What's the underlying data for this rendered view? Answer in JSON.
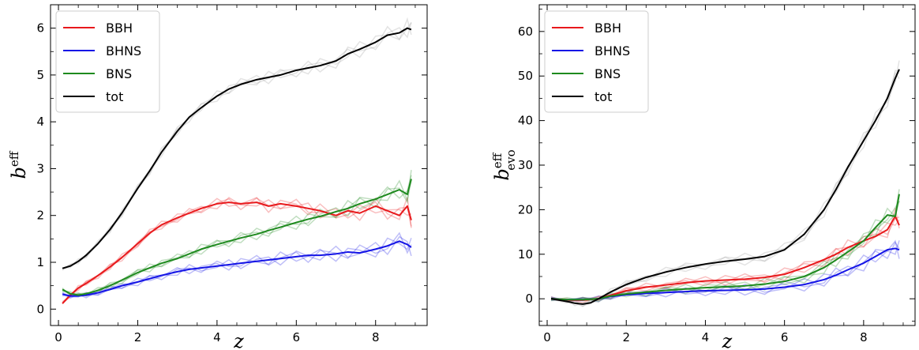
{
  "chart_data": [
    {
      "type": "line",
      "title": "",
      "xlabel": "z",
      "ylabel": {
        "base": "b",
        "sup": "eff",
        "sub": ""
      },
      "xlim": [
        -0.2,
        9.3
      ],
      "ylim": [
        -0.35,
        6.5
      ],
      "xticks": [
        0,
        2,
        4,
        6,
        8
      ],
      "yticks": [
        0,
        1,
        2,
        3,
        4,
        5,
        6
      ],
      "legend_position": "top-left",
      "colors": {
        "BBH": "#e8191c",
        "BHNS": "#1414e6",
        "BNS": "#1e8a1e",
        "tot": "#000000"
      },
      "series": [
        {
          "name": "BBH",
          "x": [
            0.1,
            0.3,
            0.5,
            0.7,
            1.0,
            1.3,
            1.6,
            2.0,
            2.3,
            2.6,
            3.0,
            3.3,
            3.6,
            4.0,
            4.3,
            4.6,
            5.0,
            5.3,
            5.6,
            6.0,
            6.3,
            6.6,
            7.0,
            7.3,
            7.6,
            8.0,
            8.3,
            8.6,
            8.8,
            8.9
          ],
          "y": [
            0.12,
            0.3,
            0.45,
            0.55,
            0.72,
            0.9,
            1.1,
            1.4,
            1.62,
            1.8,
            1.95,
            2.05,
            2.15,
            2.25,
            2.28,
            2.25,
            2.28,
            2.2,
            2.25,
            2.2,
            2.15,
            2.1,
            2.0,
            2.1,
            2.05,
            2.2,
            2.1,
            2.0,
            2.2,
            1.9
          ]
        },
        {
          "name": "BHNS",
          "x": [
            0.1,
            0.3,
            0.5,
            0.7,
            1.0,
            1.3,
            1.6,
            2.0,
            2.3,
            2.6,
            3.0,
            3.3,
            3.6,
            4.0,
            4.3,
            4.6,
            5.0,
            5.3,
            5.6,
            6.0,
            6.3,
            6.6,
            7.0,
            7.3,
            7.6,
            8.0,
            8.3,
            8.6,
            8.8,
            8.9
          ],
          "y": [
            0.32,
            0.28,
            0.28,
            0.3,
            0.35,
            0.42,
            0.5,
            0.58,
            0.65,
            0.72,
            0.8,
            0.85,
            0.88,
            0.92,
            0.95,
            0.98,
            1.02,
            1.05,
            1.08,
            1.12,
            1.15,
            1.15,
            1.18,
            1.22,
            1.2,
            1.28,
            1.35,
            1.45,
            1.38,
            1.32
          ]
        },
        {
          "name": "BNS",
          "x": [
            0.1,
            0.3,
            0.5,
            0.7,
            1.0,
            1.3,
            1.6,
            2.0,
            2.3,
            2.6,
            3.0,
            3.3,
            3.6,
            4.0,
            4.3,
            4.6,
            5.0,
            5.3,
            5.6,
            6.0,
            6.3,
            6.6,
            7.0,
            7.3,
            7.6,
            8.0,
            8.3,
            8.6,
            8.8,
            8.9
          ],
          "y": [
            0.42,
            0.33,
            0.3,
            0.33,
            0.4,
            0.5,
            0.62,
            0.78,
            0.88,
            0.98,
            1.08,
            1.18,
            1.28,
            1.38,
            1.45,
            1.52,
            1.6,
            1.68,
            1.75,
            1.85,
            1.92,
            1.98,
            2.08,
            2.15,
            2.25,
            2.35,
            2.45,
            2.55,
            2.45,
            2.78
          ]
        },
        {
          "name": "tot",
          "x": [
            0.1,
            0.3,
            0.5,
            0.7,
            1.0,
            1.3,
            1.6,
            2.0,
            2.3,
            2.6,
            3.0,
            3.3,
            3.6,
            4.0,
            4.3,
            4.6,
            5.0,
            5.3,
            5.6,
            6.0,
            6.3,
            6.6,
            7.0,
            7.3,
            7.6,
            8.0,
            8.3,
            8.6,
            8.8,
            8.9
          ],
          "y": [
            0.87,
            0.92,
            1.02,
            1.15,
            1.4,
            1.7,
            2.05,
            2.58,
            2.95,
            3.35,
            3.8,
            4.1,
            4.3,
            4.55,
            4.7,
            4.8,
            4.9,
            4.95,
            5.0,
            5.1,
            5.15,
            5.2,
            5.3,
            5.45,
            5.55,
            5.7,
            5.85,
            5.9,
            6.0,
            5.97
          ]
        }
      ]
    },
    {
      "type": "line",
      "title": "",
      "xlabel": "z",
      "ylabel": {
        "base": "b",
        "sup": "eff",
        "sub": "evo"
      },
      "xlim": [
        -0.2,
        9.3
      ],
      "ylim": [
        -6,
        66
      ],
      "xticks": [
        0,
        2,
        4,
        6,
        8
      ],
      "yticks": [
        0,
        10,
        20,
        30,
        40,
        50,
        60
      ],
      "legend_position": "top-left",
      "colors": {
        "BBH": "#e8191c",
        "BHNS": "#1414e6",
        "BNS": "#1e8a1e",
        "tot": "#000000"
      },
      "series": [
        {
          "name": "BBH",
          "x": [
            0.1,
            0.5,
            0.9,
            1.3,
            1.6,
            2.0,
            2.5,
            3.0,
            3.5,
            4.0,
            4.5,
            5.0,
            5.5,
            6.0,
            6.5,
            7.0,
            7.3,
            7.6,
            8.0,
            8.3,
            8.6,
            8.8,
            8.9
          ],
          "y": [
            0,
            -0.3,
            -0.3,
            0,
            0.8,
            1.8,
            2.6,
            3.1,
            3.6,
            4.0,
            4.2,
            4.4,
            4.8,
            5.5,
            7.0,
            8.8,
            10.0,
            11.5,
            13.0,
            14.0,
            15.5,
            18.5,
            16.5
          ]
        },
        {
          "name": "BHNS",
          "x": [
            0.1,
            0.5,
            0.9,
            1.3,
            1.6,
            2.0,
            2.5,
            3.0,
            3.5,
            4.0,
            4.5,
            5.0,
            5.5,
            6.0,
            6.5,
            7.0,
            7.3,
            7.6,
            8.0,
            8.3,
            8.6,
            8.8,
            8.9
          ],
          "y": [
            0,
            -0.2,
            -0.2,
            0,
            0.5,
            0.9,
            1.2,
            1.4,
            1.6,
            1.8,
            1.9,
            2.0,
            2.2,
            2.6,
            3.2,
            4.3,
            5.3,
            6.5,
            8.0,
            9.5,
            11.0,
            11.3,
            11.0
          ]
        },
        {
          "name": "BNS",
          "x": [
            0.1,
            0.5,
            0.9,
            1.3,
            1.6,
            2.0,
            2.5,
            3.0,
            3.5,
            4.0,
            4.5,
            5.0,
            5.5,
            6.0,
            6.5,
            7.0,
            7.3,
            7.6,
            8.0,
            8.3,
            8.6,
            8.8,
            8.9
          ],
          "y": [
            0,
            -0.2,
            -0.2,
            0,
            0.6,
            1.1,
            1.5,
            1.9,
            2.2,
            2.5,
            2.7,
            2.9,
            3.3,
            3.9,
            5.0,
            7.0,
            8.7,
            10.5,
            13.0,
            16.0,
            18.8,
            18.5,
            23.5
          ]
        },
        {
          "name": "tot",
          "x": [
            0.1,
            0.5,
            0.7,
            0.9,
            1.1,
            1.3,
            1.6,
            2.0,
            2.5,
            3.0,
            3.5,
            4.0,
            4.5,
            5.0,
            5.5,
            6.0,
            6.5,
            7.0,
            7.3,
            7.6,
            8.0,
            8.3,
            8.6,
            8.8,
            8.9
          ],
          "y": [
            0,
            -0.6,
            -1.0,
            -1.2,
            -0.9,
            0,
            1.5,
            3.2,
            4.8,
            6.0,
            7.0,
            7.8,
            8.4,
            8.9,
            9.5,
            11.0,
            14.5,
            20.0,
            24.5,
            29.5,
            35.5,
            40.0,
            45.0,
            49.5,
            51.5
          ]
        }
      ]
    }
  ],
  "legend": {
    "labels": [
      "BBH",
      "BHNS",
      "BNS",
      "tot"
    ]
  }
}
